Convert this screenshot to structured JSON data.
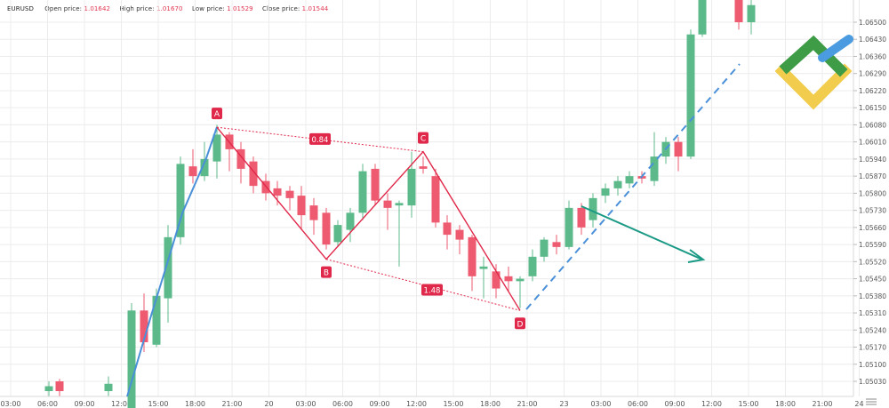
{
  "header": {
    "symbol": "EURUSD",
    "open_label": "Open price:",
    "open_value": "1.01642",
    "high_label": "High price:",
    "high_value": "1.01670",
    "low_label": "Low price:",
    "low_value": "1.01529",
    "close_label": "Close price:",
    "close_value": "1.01544"
  },
  "colors": {
    "bull": "#5cb98a",
    "bear": "#ee5a6f",
    "pattern": "#e0284a",
    "blue_line": "#4a90d9",
    "arrow": "#1a9a85",
    "grid": "#ececec",
    "axis_text": "#555555"
  },
  "icon": "litefinance-logo",
  "chart_data": {
    "type": "candlestick",
    "symbol": "EURUSD",
    "ylim": [
      1.0499,
      1.0654
    ],
    "y_ticks": [
      "1.06500",
      "1.06430",
      "1.06360",
      "1.06290",
      "1.06220",
      "1.06150",
      "1.06080",
      "1.06010",
      "1.05940",
      "1.05870",
      "1.05800",
      "1.05730",
      "1.05660",
      "1.05590",
      "1.05520",
      "1.05450",
      "1.05380",
      "1.05310",
      "1.05240",
      "1.05170",
      "1.05100",
      "1.05030"
    ],
    "x_ticks": [
      "03:00",
      "06:00",
      "09:00",
      "12:00",
      "15:00",
      "18:00",
      "21:00",
      "20",
      "03:00",
      "06:00",
      "09:00",
      "12:00",
      "15:00",
      "18:00",
      "21:00",
      "23",
      "03:00",
      "06:00",
      "09:00",
      "12:00",
      "15:00",
      "18:00",
      "21:00",
      "24"
    ],
    "candles": [
      {
        "x": 55,
        "o": 1.0499,
        "h": 1.0503,
        "l": 1.0497,
        "c": 1.0501
      },
      {
        "x": 67,
        "o": 1.0503,
        "h": 1.0504,
        "l": 1.0497,
        "c": 1.0499
      },
      {
        "x": 122,
        "o": 1.0499,
        "h": 1.0505,
        "l": 1.0497,
        "c": 1.0502
      },
      {
        "x": 148,
        "o": 1.0492,
        "h": 1.0535,
        "l": 1.049,
        "c": 1.0532
      },
      {
        "x": 162,
        "o": 1.0532,
        "h": 1.0539,
        "l": 1.0515,
        "c": 1.0519
      },
      {
        "x": 176,
        "o": 1.0518,
        "h": 1.0541,
        "l": 1.0517,
        "c": 1.0538
      },
      {
        "x": 189,
        "o": 1.0537,
        "h": 1.0567,
        "l": 1.0527,
        "c": 1.0562
      },
      {
        "x": 203,
        "o": 1.0562,
        "h": 1.0595,
        "l": 1.0559,
        "c": 1.0592
      },
      {
        "x": 217,
        "o": 1.0591,
        "h": 1.0598,
        "l": 1.0584,
        "c": 1.0587
      },
      {
        "x": 230,
        "o": 1.0587,
        "h": 1.0601,
        "l": 1.0585,
        "c": 1.0594
      },
      {
        "x": 244,
        "o": 1.0593,
        "h": 1.0608,
        "l": 1.0586,
        "c": 1.0604
      },
      {
        "x": 258,
        "o": 1.0604,
        "h": 1.0605,
        "l": 1.0589,
        "c": 1.0598
      },
      {
        "x": 271,
        "o": 1.0598,
        "h": 1.0601,
        "l": 1.0584,
        "c": 1.059
      },
      {
        "x": 285,
        "o": 1.0593,
        "h": 1.0595,
        "l": 1.058,
        "c": 1.0583
      },
      {
        "x": 299,
        "o": 1.0585,
        "h": 1.0588,
        "l": 1.0577,
        "c": 1.058
      },
      {
        "x": 312,
        "o": 1.0582,
        "h": 1.0585,
        "l": 1.0575,
        "c": 1.0579
      },
      {
        "x": 326,
        "o": 1.0581,
        "h": 1.0583,
        "l": 1.0573,
        "c": 1.0578
      },
      {
        "x": 339,
        "o": 1.0579,
        "h": 1.0583,
        "l": 1.0565,
        "c": 1.0571
      },
      {
        "x": 353,
        "o": 1.0575,
        "h": 1.0578,
        "l": 1.0563,
        "c": 1.0569
      },
      {
        "x": 367,
        "o": 1.0572,
        "h": 1.0574,
        "l": 1.0557,
        "c": 1.0559
      },
      {
        "x": 380,
        "o": 1.056,
        "h": 1.0569,
        "l": 1.0558,
        "c": 1.0567
      },
      {
        "x": 394,
        "o": 1.0565,
        "h": 1.0574,
        "l": 1.056,
        "c": 1.0572
      },
      {
        "x": 408,
        "o": 1.0572,
        "h": 1.0592,
        "l": 1.0569,
        "c": 1.0589
      },
      {
        "x": 422,
        "o": 1.059,
        "h": 1.0592,
        "l": 1.0575,
        "c": 1.0577
      },
      {
        "x": 436,
        "o": 1.0577,
        "h": 1.058,
        "l": 1.0565,
        "c": 1.0574
      },
      {
        "x": 449,
        "o": 1.0575,
        "h": 1.0577,
        "l": 1.055,
        "c": 1.0576
      },
      {
        "x": 463,
        "o": 1.0575,
        "h": 1.0597,
        "l": 1.057,
        "c": 1.059
      },
      {
        "x": 476,
        "o": 1.0591,
        "h": 1.0595,
        "l": 1.0588,
        "c": 1.059
      },
      {
        "x": 490,
        "o": 1.0587,
        "h": 1.059,
        "l": 1.0566,
        "c": 1.0568
      },
      {
        "x": 503,
        "o": 1.0568,
        "h": 1.0571,
        "l": 1.0557,
        "c": 1.0563
      },
      {
        "x": 517,
        "o": 1.0565,
        "h": 1.0567,
        "l": 1.0555,
        "c": 1.0561
      },
      {
        "x": 531,
        "o": 1.0562,
        "h": 1.0563,
        "l": 1.054,
        "c": 1.0546
      },
      {
        "x": 544,
        "o": 1.0549,
        "h": 1.0554,
        "l": 1.0537,
        "c": 1.055
      },
      {
        "x": 558,
        "o": 1.0548,
        "h": 1.0551,
        "l": 1.0537,
        "c": 1.0541
      },
      {
        "x": 572,
        "o": 1.0546,
        "h": 1.055,
        "l": 1.054,
        "c": 1.0544
      },
      {
        "x": 585,
        "o": 1.0544,
        "h": 1.0546,
        "l": 1.0533,
        "c": 1.0545
      },
      {
        "x": 599,
        "o": 1.0546,
        "h": 1.0557,
        "l": 1.0544,
        "c": 1.0554
      },
      {
        "x": 612,
        "o": 1.0554,
        "h": 1.0562,
        "l": 1.0552,
        "c": 1.0561
      },
      {
        "x": 626,
        "o": 1.056,
        "h": 1.0563,
        "l": 1.0555,
        "c": 1.0558
      },
      {
        "x": 640,
        "o": 1.0558,
        "h": 1.0577,
        "l": 1.0557,
        "c": 1.0574
      },
      {
        "x": 654,
        "o": 1.0574,
        "h": 1.0576,
        "l": 1.0563,
        "c": 1.0566
      },
      {
        "x": 667,
        "o": 1.0569,
        "h": 1.058,
        "l": 1.0566,
        "c": 1.0578
      },
      {
        "x": 681,
        "o": 1.0579,
        "h": 1.0584,
        "l": 1.0576,
        "c": 1.0582
      },
      {
        "x": 695,
        "o": 1.0582,
        "h": 1.0587,
        "l": 1.0579,
        "c": 1.0585
      },
      {
        "x": 708,
        "o": 1.0584,
        "h": 1.0589,
        "l": 1.0582,
        "c": 1.0587
      },
      {
        "x": 722,
        "o": 1.0587,
        "h": 1.0589,
        "l": 1.0584,
        "c": 1.0586
      },
      {
        "x": 736,
        "o": 1.0585,
        "h": 1.0605,
        "l": 1.0583,
        "c": 1.0595
      },
      {
        "x": 749,
        "o": 1.0595,
        "h": 1.0603,
        "l": 1.0592,
        "c": 1.0601
      },
      {
        "x": 763,
        "o": 1.0601,
        "h": 1.0603,
        "l": 1.0589,
        "c": 1.0595
      },
      {
        "x": 777,
        "o": 1.0595,
        "h": 1.0647,
        "l": 1.0594,
        "c": 1.0645
      },
      {
        "x": 790,
        "o": 1.0645,
        "h": 1.0664,
        "l": 1.0644,
        "c": 1.066
      },
      {
        "x": 831,
        "o": 1.066,
        "h": 1.0662,
        "l": 1.0647,
        "c": 1.065
      },
      {
        "x": 845,
        "o": 1.065,
        "h": 1.066,
        "l": 1.0645,
        "c": 1.0657
      }
    ],
    "pattern": {
      "points": [
        {
          "label": "A",
          "x": 244,
          "y": 1.0607
        },
        {
          "label": "B",
          "x": 367,
          "y": 1.0553
        },
        {
          "label": "C",
          "x": 476,
          "y": 1.0597
        },
        {
          "label": "D",
          "x": 585,
          "y": 1.0532
        }
      ],
      "ratios": [
        "0.84",
        "1.48"
      ]
    },
    "grid": true
  }
}
